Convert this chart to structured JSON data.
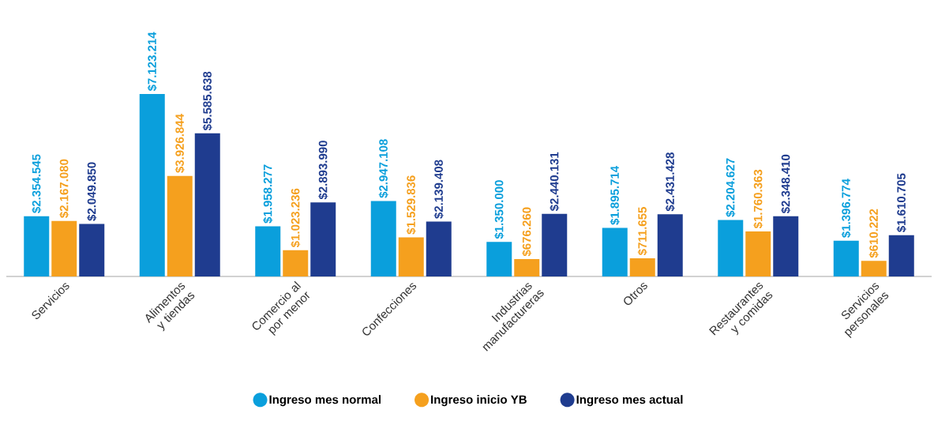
{
  "chart_data": {
    "type": "bar",
    "categories": [
      "Servicios",
      "Alimentos y tiendas",
      "Comercio al por menor",
      "Confecciones",
      "Industrias manufactureras",
      "Otros",
      "Restaurantes y comidas",
      "Servicios personales"
    ],
    "series": [
      {
        "name": "Ingreso mes normal",
        "color": "#0a9fdc",
        "values": [
          2354545,
          7123214,
          1958277,
          2947108,
          1350000,
          1895714,
          2204627,
          1396774
        ],
        "value_labels": [
          "$2.354.545",
          "$7.123.214",
          "$1.958.277",
          "$2.947.108",
          "$1.350.000",
          "$1.895.714",
          "$2.204.627",
          "$1.396.774"
        ]
      },
      {
        "name": "Ingreso inicio YB",
        "color": "#f5a01e",
        "values": [
          2167080,
          3926844,
          1023236,
          1529836,
          676260,
          711655,
          1760363,
          610222
        ],
        "value_labels": [
          "$2.167.080",
          "$3.926.844",
          "$1.023.236",
          "$1.529.836",
          "$676.260",
          "$711.655",
          "$1.760.363",
          "$610.222"
        ]
      },
      {
        "name": "Ingreso mes actual",
        "color": "#1f3c8f",
        "values": [
          2049850,
          5585638,
          2893990,
          2139408,
          2440131,
          2431428,
          2348410,
          1610705
        ],
        "value_labels": [
          "$2.049.850",
          "$5.585.638",
          "$2.893.990",
          "$2.139.408",
          "$2.440.131",
          "$2.431.428",
          "$2.348.410",
          "$1.610.705"
        ]
      }
    ],
    "legend": "bottom"
  }
}
